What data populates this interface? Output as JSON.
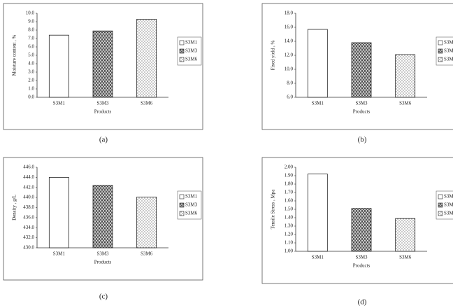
{
  "chart_data": [
    {
      "type": "bar",
      "caption": "(a)",
      "ylabel": "Moisture content , %",
      "xlabel": "Products",
      "categories": [
        "S3M1",
        "S3M3",
        "S3M6"
      ],
      "values": [
        7.4,
        7.9,
        9.3
      ],
      "ylim": [
        0,
        10
      ],
      "yticks": [
        {
          "value": 0,
          "label": "0.0"
        },
        {
          "value": 1,
          "label": "1.0"
        },
        {
          "value": 2,
          "label": "2.0"
        },
        {
          "value": 3,
          "label": "3.0"
        },
        {
          "value": 4,
          "label": "4.0"
        },
        {
          "value": 5,
          "label": "5.0"
        },
        {
          "value": 6,
          "label": "6.0"
        },
        {
          "value": 7,
          "label": "7.0"
        },
        {
          "value": 8,
          "label": "8.0"
        },
        {
          "value": 9,
          "label": "9.0"
        },
        {
          "value": 10,
          "label": "10.0"
        }
      ]
    },
    {
      "type": "bar",
      "caption": "(b)",
      "ylabel": "Fixed yield , %",
      "xlabel": "Products",
      "categories": [
        "S3M1",
        "S3M3",
        "S3M6"
      ],
      "values": [
        15.7,
        13.8,
        12.1
      ],
      "ylim": [
        6,
        18
      ],
      "yticks": [
        {
          "value": 6,
          "label": "6.0"
        },
        {
          "value": 8,
          "label": "8.0"
        },
        {
          "value": 10,
          "label": "10.0"
        },
        {
          "value": 12,
          "label": "12.0"
        },
        {
          "value": 14,
          "label": "14.0"
        },
        {
          "value": 16,
          "label": "16.0"
        },
        {
          "value": 18,
          "label": "18.0"
        }
      ]
    },
    {
      "type": "bar",
      "caption": "(c)",
      "ylabel": "Density , g/L",
      "xlabel": "Products",
      "categories": [
        "S3M1",
        "S3M3",
        "S3M6"
      ],
      "values": [
        444.0,
        442.4,
        440.1
      ],
      "ylim": [
        430,
        446
      ],
      "yticks": [
        {
          "value": 430,
          "label": "430.0"
        },
        {
          "value": 432,
          "label": "432.0"
        },
        {
          "value": 434,
          "label": "434.0"
        },
        {
          "value": 436,
          "label": "436.0"
        },
        {
          "value": 438,
          "label": "438.0"
        },
        {
          "value": 440,
          "label": "440.0"
        },
        {
          "value": 442,
          "label": "442.0"
        },
        {
          "value": 444,
          "label": "444.0"
        },
        {
          "value": 446,
          "label": "446.0"
        }
      ]
    },
    {
      "type": "bar",
      "caption": "(d)",
      "ylabel": "Tensile Stress , Mpa",
      "xlabel": "Products",
      "categories": [
        "S3M1",
        "S3M3",
        "S3M6"
      ],
      "values": [
        1.92,
        1.51,
        1.39
      ],
      "ylim": [
        1,
        2
      ],
      "yticks": [
        {
          "value": 1,
          "label": "1.00"
        },
        {
          "value": 1.1,
          "label": "1.10"
        },
        {
          "value": 1.2,
          "label": "1.20"
        },
        {
          "value": 1.3,
          "label": "1.30"
        },
        {
          "value": 1.4,
          "label": "1.40"
        },
        {
          "value": 1.5,
          "label": "1.50"
        },
        {
          "value": 1.6,
          "label": "1.60"
        },
        {
          "value": 1.7,
          "label": "1.70"
        },
        {
          "value": 1.8,
          "label": "1.80"
        },
        {
          "value": 1.9,
          "label": "1.90"
        },
        {
          "value": 2,
          "label": "2.00"
        }
      ]
    }
  ]
}
